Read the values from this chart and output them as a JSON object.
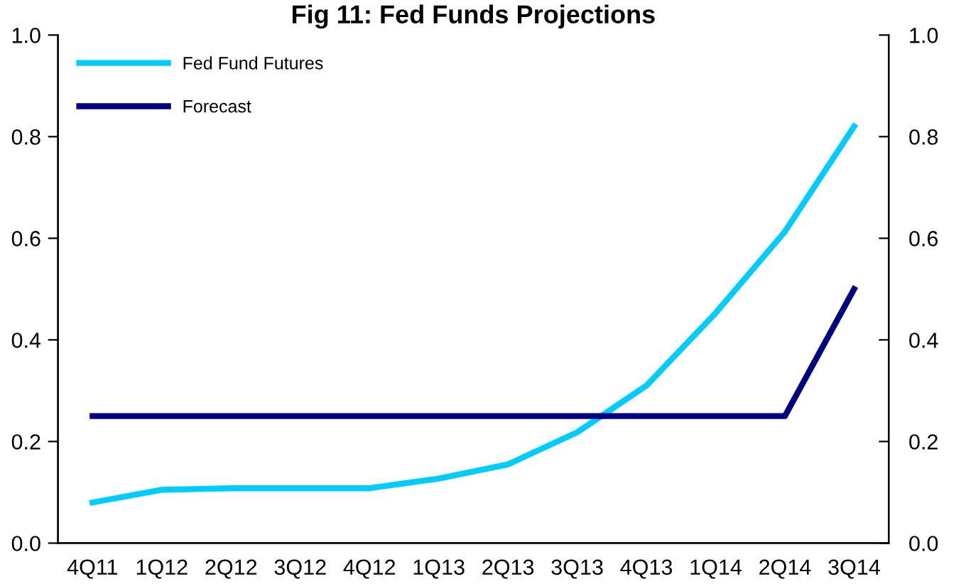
{
  "chart_data": {
    "type": "line",
    "title": "Fig 11: Fed Funds Projections",
    "categories": [
      "4Q11",
      "1Q12",
      "2Q12",
      "3Q12",
      "4Q12",
      "1Q13",
      "2Q13",
      "3Q13",
      "4Q13",
      "1Q14",
      "2Q14",
      "3Q14"
    ],
    "series": [
      {
        "name": "Fed Fund Futures",
        "color": "#00ccff",
        "values": [
          0.08,
          0.105,
          0.108,
          0.108,
          0.108,
          0.127,
          0.155,
          0.218,
          0.31,
          0.453,
          0.613,
          0.82
        ]
      },
      {
        "name": "Forecast",
        "color": "#000080",
        "values": [
          0.25,
          0.25,
          0.25,
          0.25,
          0.25,
          0.25,
          0.25,
          0.25,
          0.25,
          0.25,
          0.25,
          0.5
        ]
      }
    ],
    "ylim": [
      0,
      1
    ],
    "yticks": [
      {
        "value": 0,
        "label": "0.0"
      },
      0.2,
      0.4,
      0.6,
      0.8,
      {
        "value": 1,
        "label": "1.0"
      }
    ],
    "y2lim": [
      0,
      1
    ],
    "y2ticks": [
      {
        "value": 0,
        "label": "0.0"
      },
      0.2,
      0.4,
      0.6,
      0.8,
      {
        "value": 1,
        "label": "1.0"
      }
    ],
    "grid": false,
    "legend": "top left",
    "marker": "none",
    "line_style": "solid"
  }
}
